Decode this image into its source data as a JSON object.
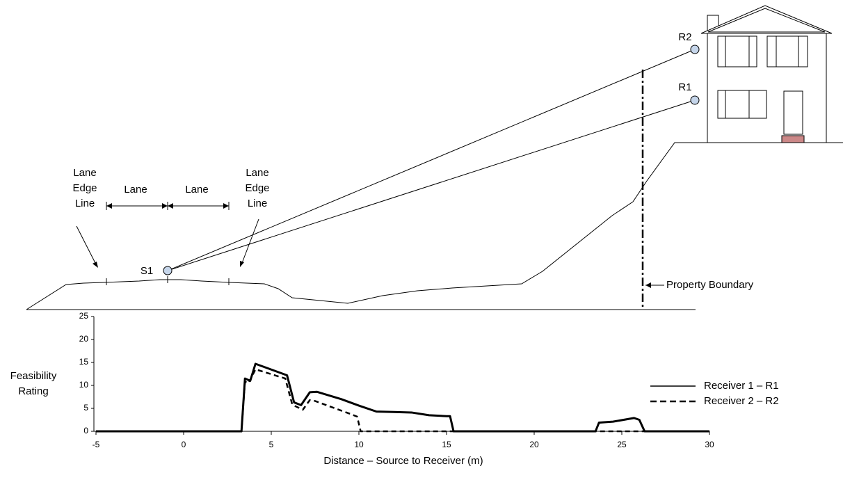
{
  "diagram": {
    "lane_edge_left": "Lane Edge Line",
    "lane_edge_right": "Lane Edge Line",
    "lane_left": "Lane",
    "lane_right": "Lane",
    "source": "S1",
    "receiver_1": "R1",
    "receiver_2": "R2",
    "property_boundary": "Property Boundary"
  },
  "chart_data": {
    "type": "line",
    "xlabel": "Distance – Source to Receiver (m)",
    "ylabel": "Feasibility Rating",
    "xlim": [
      -5,
      30
    ],
    "xticks": [
      -5,
      0,
      5,
      10,
      15,
      20,
      25,
      30
    ],
    "ylim": [
      0,
      25
    ],
    "yticks": [
      0,
      5,
      10,
      15,
      20,
      25
    ],
    "legend": "right",
    "series": [
      {
        "name": "Receiver 1 – R1",
        "color": "#000000",
        "dashed": false,
        "x": [
          -5,
          3.3,
          3.5,
          3.8,
          4.1,
          5.9,
          6.3,
          6.7,
          7.2,
          7.6,
          9,
          10,
          11,
          12,
          13,
          14,
          15,
          15.2,
          15.4,
          23.5,
          23.7,
          24.5,
          25.7,
          26,
          26.3,
          30
        ],
        "values": [
          0,
          0,
          11.5,
          11,
          14.7,
          12.2,
          6.3,
          5.7,
          8.5,
          8.6,
          7,
          5.6,
          4.3,
          4.2,
          4.1,
          3.5,
          3.3,
          3.3,
          0,
          0,
          1.9,
          2.1,
          2.9,
          2.5,
          0,
          0
        ]
      },
      {
        "name": "Receiver 2 – R2",
        "color": "#000000",
        "dashed": true,
        "x": [
          -5,
          3.3,
          3.5,
          3.7,
          4.1,
          5.8,
          6.2,
          6.8,
          7.2,
          7.5,
          9.5,
          9.9,
          10.1,
          30
        ],
        "values": [
          0,
          0,
          10.8,
          10.5,
          13.5,
          11.5,
          5.8,
          4.7,
          6.8,
          6.6,
          3.8,
          3.2,
          0,
          0
        ]
      }
    ]
  }
}
